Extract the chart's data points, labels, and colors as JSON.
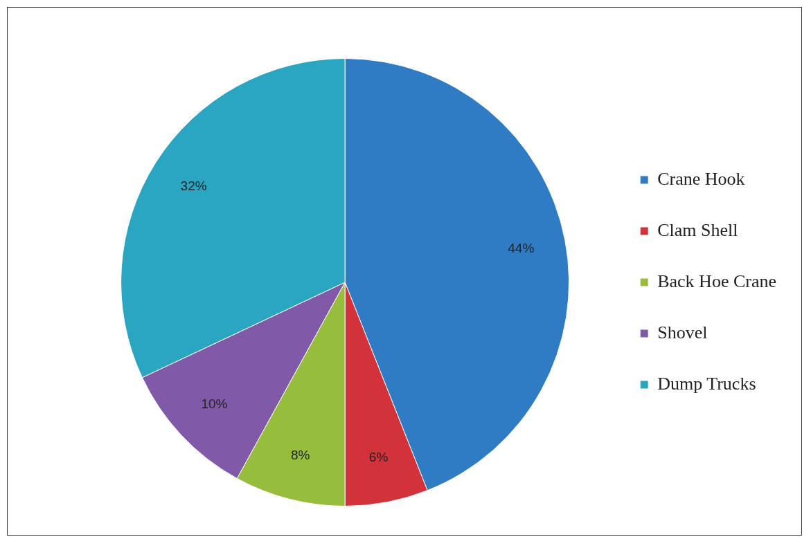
{
  "chart_data": {
    "type": "pie",
    "categories": [
      "Crane Hook",
      "Clam Shell",
      "Back Hoe Crane",
      "Shovel",
      "Dump Trucks"
    ],
    "values": [
      44,
      6,
      8,
      10,
      32
    ],
    "colors": [
      "#2f7bc4",
      "#d2333b",
      "#97bd3d",
      "#8059a8",
      "#2aa5c2"
    ],
    "value_labels": [
      "44%",
      "6%",
      "8%",
      "10%",
      "32%"
    ],
    "legend": "right"
  }
}
